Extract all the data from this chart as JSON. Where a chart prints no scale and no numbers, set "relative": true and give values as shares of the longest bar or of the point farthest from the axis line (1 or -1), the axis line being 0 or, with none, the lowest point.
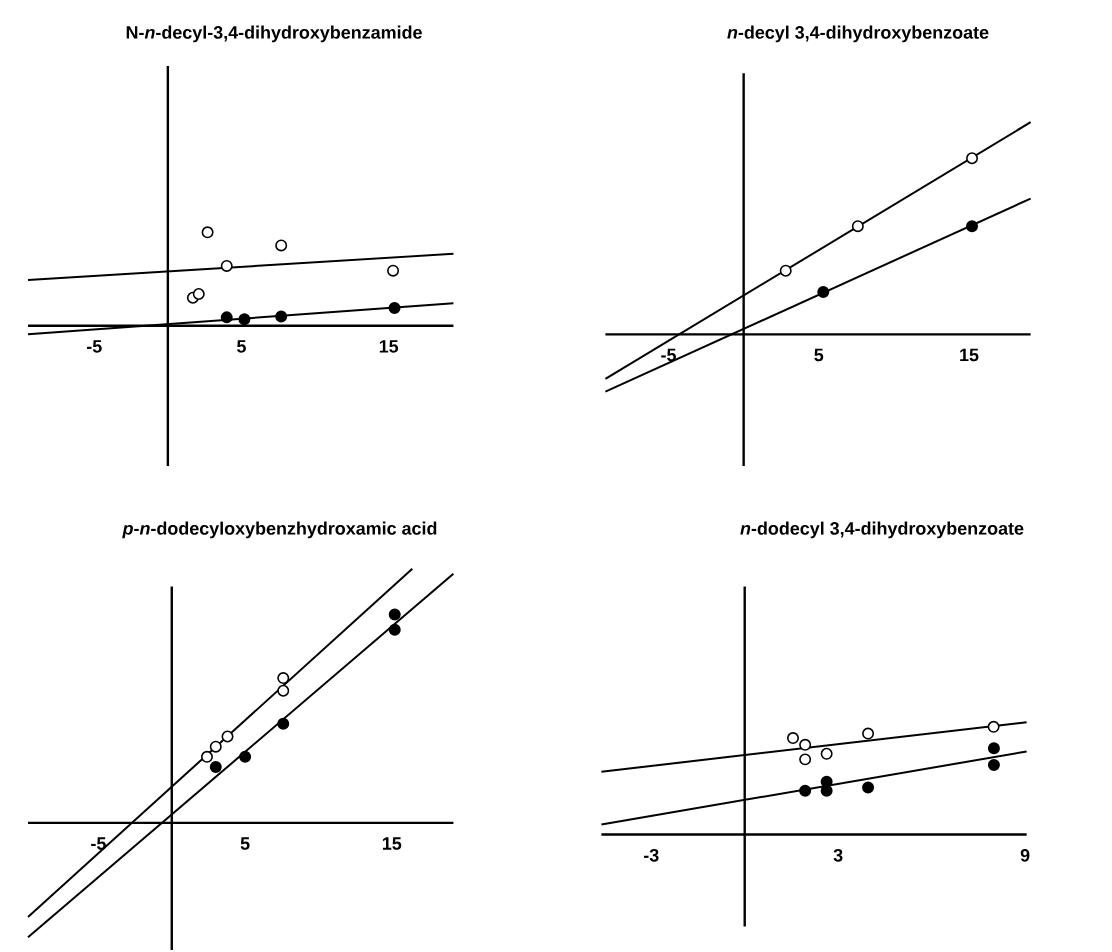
{
  "chart_data": [
    {
      "type": "scatter",
      "title": "N-*n*-decyl-3,4-dihydroxybenzamide",
      "relative": true,
      "xlim": [
        -9.5,
        19.4
      ],
      "xticks": [
        -5,
        5,
        15
      ],
      "series": [
        {
          "type": "scatter",
          "marker": "circle",
          "color": "#ffffff",
          "x": [
            2.7,
            7.7,
            4.0,
            15.3,
            1.7,
            2.1
          ],
          "values": [
            1.0,
            0.86,
            0.64,
            0.59,
            0.3,
            0.34
          ]
        },
        {
          "type": "scatter",
          "marker": "circle",
          "color": "#000000",
          "x": [
            4.0,
            5.2,
            7.7,
            15.4
          ],
          "values": [
            0.09,
            0.07,
            0.1,
            0.19
          ]
        },
        {
          "type": "line",
          "color": "#000000",
          "x": [
            -9.5,
            19.4
          ],
          "values": [
            0.49,
            0.77
          ]
        },
        {
          "type": "line",
          "color": "#000000",
          "x": [
            -9.5,
            19.4
          ],
          "values": [
            -0.09,
            0.24
          ]
        }
      ]
    },
    {
      "type": "scatter",
      "title": "*n*-decyl 3,4-dihydroxybenzoate",
      "relative": true,
      "xlim": [
        -9.2,
        19.1
      ],
      "xticks": [
        -5,
        5,
        15
      ],
      "series": [
        {
          "type": "scatter",
          "marker": "circle",
          "color": "#ffffff",
          "x": [
            2.8,
            7.6,
            15.2
          ],
          "values": [
            0.3,
            0.51,
            0.83
          ]
        },
        {
          "type": "scatter",
          "marker": "circle",
          "color": "#000000",
          "x": [
            5.3,
            15.2
          ],
          "values": [
            0.2,
            0.51
          ]
        },
        {
          "type": "line",
          "color": "#000000",
          "x": [
            -9.2,
            19.1
          ],
          "values": [
            -0.21,
            1.0
          ]
        },
        {
          "type": "line",
          "color": "#000000",
          "x": [
            -9.2,
            19.1
          ],
          "values": [
            -0.27,
            0.64
          ]
        }
      ]
    },
    {
      "type": "scatter",
      "title": "*p*-*n*-dodecyloxybenzhydroxamic acid",
      "relative": true,
      "xlim": [
        -9.8,
        19.2
      ],
      "xticks": [
        -5,
        5,
        15
      ],
      "series": [
        {
          "type": "scatter",
          "marker": "circle",
          "color": "#ffffff",
          "x": [
            2.4,
            3.0,
            3.8,
            7.6,
            7.6
          ],
          "values": [
            0.26,
            0.3,
            0.34,
            0.57,
            0.52
          ]
        },
        {
          "type": "scatter",
          "marker": "circle",
          "color": "#000000",
          "x": [
            3.0,
            5.0,
            7.6,
            15.2,
            15.2
          ],
          "values": [
            0.22,
            0.26,
            0.39,
            0.82,
            0.76
          ]
        },
        {
          "type": "line",
          "color": "#000000",
          "x": [
            -9.8,
            16.4
          ],
          "values": [
            -0.37,
            1.0
          ]
        },
        {
          "type": "line",
          "color": "#000000",
          "x": [
            -9.8,
            19.2
          ],
          "values": [
            -0.45,
            0.98
          ]
        }
      ]
    },
    {
      "type": "scatter",
      "title": "*n*-dodecyl 3,4-dihydroxybenzoate",
      "relative": true,
      "xlim": [
        -4.6,
        9.05
      ],
      "xticks": [
        -3,
        3,
        9
      ],
      "series": [
        {
          "type": "scatter",
          "marker": "circle",
          "color": "#ffffff",
          "x": [
            1.55,
            1.94,
            1.94,
            2.63,
            3.96,
            7.99
          ],
          "values": [
            0.86,
            0.8,
            0.67,
            0.72,
            0.9,
            0.96
          ]
        },
        {
          "type": "scatter",
          "marker": "circle",
          "color": "#000000",
          "x": [
            1.94,
            2.63,
            2.63,
            3.96,
            8.0,
            8.0
          ],
          "values": [
            0.39,
            0.47,
            0.39,
            0.42,
            0.77,
            0.62
          ]
        },
        {
          "type": "line",
          "color": "#000000",
          "x": [
            -4.6,
            9.05
          ],
          "values": [
            0.56,
            1.0
          ]
        },
        {
          "type": "line",
          "color": "#000000",
          "x": [
            -4.6,
            9.05
          ],
          "values": [
            0.09,
            0.74
          ]
        }
      ]
    }
  ]
}
